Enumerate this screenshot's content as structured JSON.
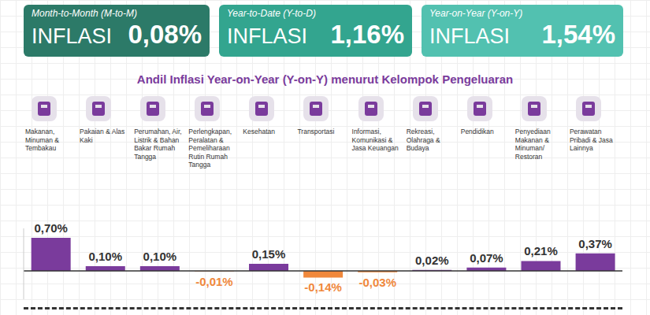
{
  "header": {
    "boxes": [
      {
        "period": "Month-to-Month (M-to-M)",
        "label": "INFLASI",
        "value": "0,08%"
      },
      {
        "period": "Year-to-Date (Y-to-D)",
        "label": "INFLASI",
        "value": "1,16%"
      },
      {
        "period": "Year-on-Year (Y-on-Y)",
        "label": "INFLASI",
        "value": "1,54%"
      }
    ]
  },
  "chart_data": {
    "type": "bar",
    "title": "Andil Inflasi Year-on-Year (Y-on-Y) menurut Kelompok Pengeluaran",
    "categories": [
      "Makanan, Minuman & Tembakau",
      "Pakaian & Alas Kaki",
      "Perumahan, Air, Listrik & Bahan Bakar Rumah Tangga",
      "Perlengkapan, Peralatan & Pemeliharaan Rutin Rumah Tangga",
      "Kesehatan",
      "Transportasi",
      "Informasi, Komunikasi & Jasa Keuangan",
      "Rekreasi, Olahraga & Budaya",
      "Pendidikan",
      "Penyediaan Makanan & Minuman/ Restoran",
      "Perawatan Pribadi & Jasa Lainnya"
    ],
    "values": [
      0.7,
      0.1,
      0.1,
      -0.01,
      0.15,
      -0.14,
      -0.03,
      0.02,
      0.07,
      0.21,
      0.37
    ],
    "value_labels": [
      "0,70%",
      "0,10%",
      "0,10%",
      "-0,01%",
      "0,15%",
      "-0,14%",
      "-0,03%",
      "0,02%",
      "0,07%",
      "0,21%",
      "0,37%"
    ],
    "colors": [
      "#7a3b9c",
      "#7a3b9c",
      "#7a3b9c",
      "#f0883c",
      "#7a3b9c",
      "#f0883c",
      "#f0883c",
      "#7a3b9c",
      "#7a3b9c",
      "#7a3b9c",
      "#7a3b9c"
    ],
    "ylim": [
      -0.6,
      0.9
    ],
    "data_labels": true,
    "tick_labels": false
  }
}
